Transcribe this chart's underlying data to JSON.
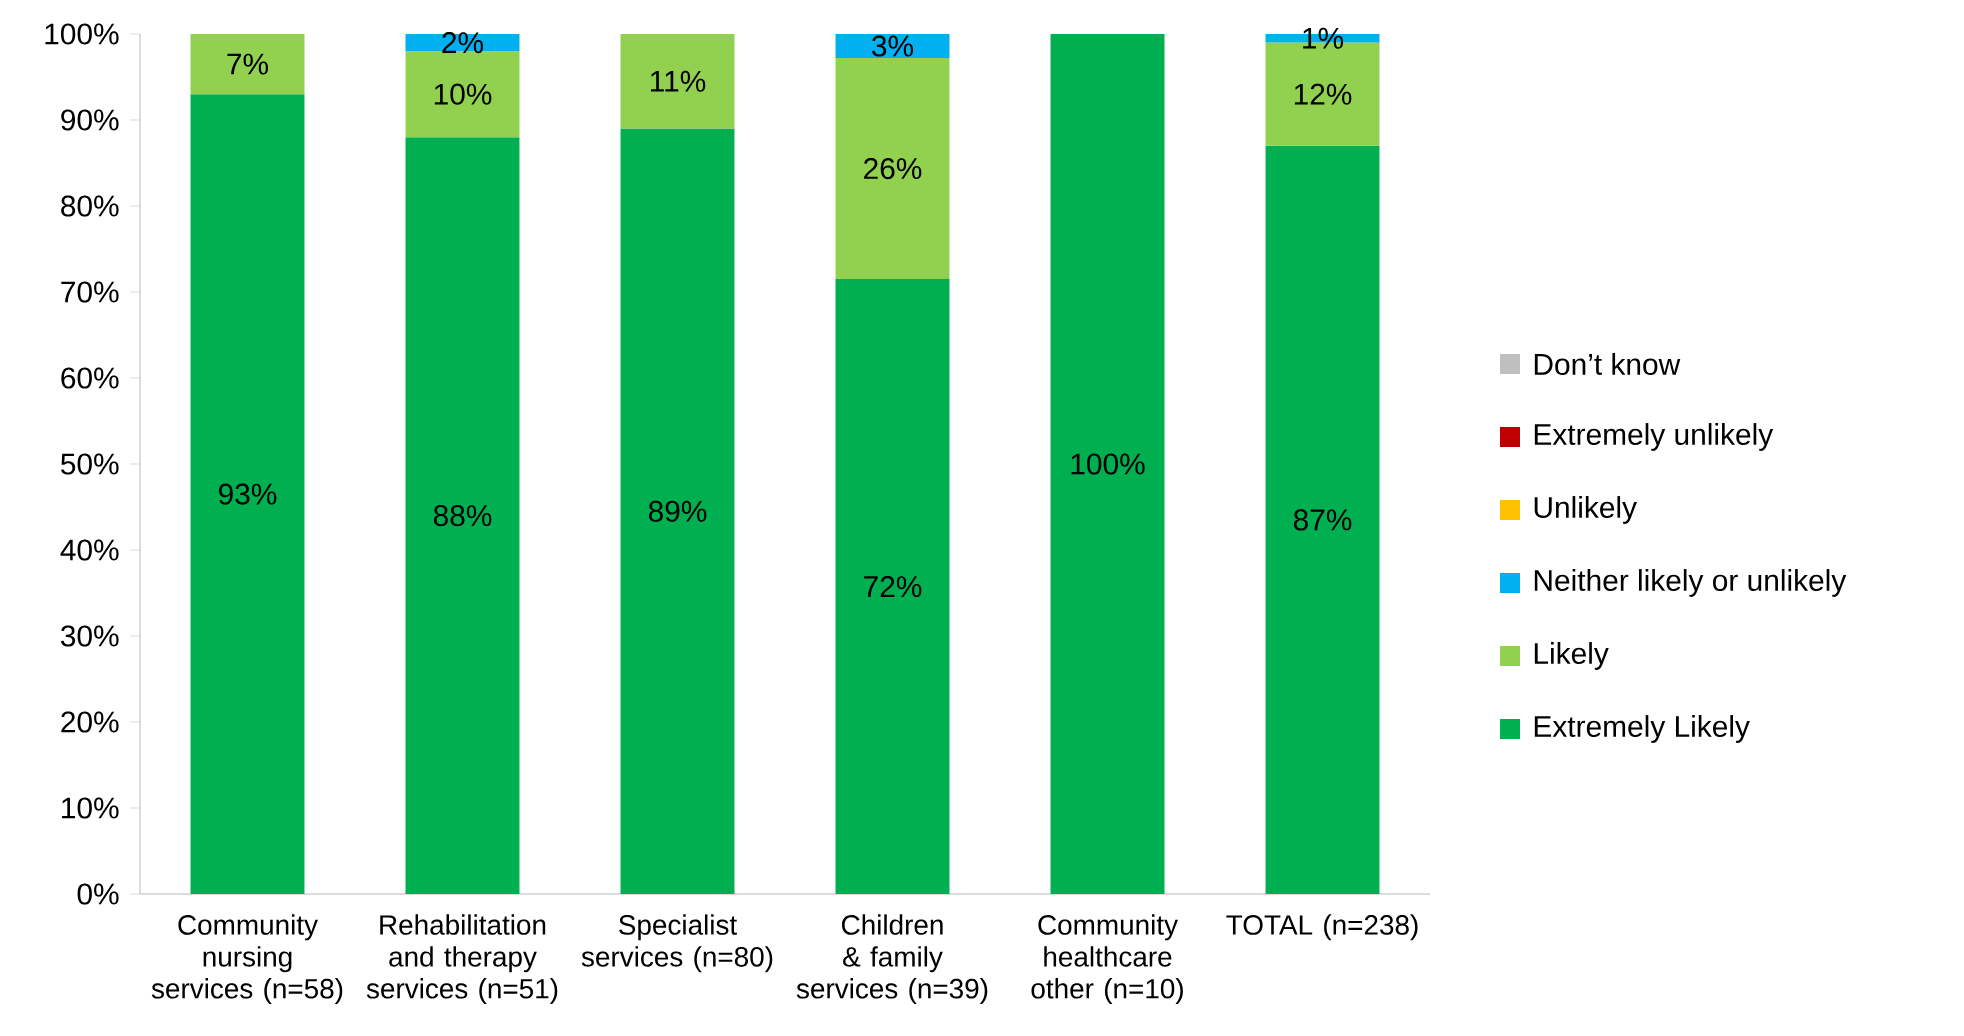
{
  "chart_data": {
    "type": "bar",
    "stacked": true,
    "legend": "right",
    "categories": [
      "Community nursing services (n=58)",
      "Rehabilitation and therapy services (n=51)",
      "Specialist services (n=80)",
      "Children & family services (n=39)",
      "Community healthcare other (n=10)",
      "TOTAL (n=238)"
    ],
    "ylim": [
      0,
      100
    ],
    "yticks": [
      {
        "value": 0,
        "label": "0%"
      },
      {
        "value": 10,
        "label": "10%"
      },
      {
        "value": 20,
        "label": "20%"
      },
      {
        "value": 30,
        "label": "30%"
      },
      {
        "value": 40,
        "label": "40%"
      },
      {
        "value": 50,
        "label": "50%"
      },
      {
        "value": 60,
        "label": "60%"
      },
      {
        "value": 70,
        "label": "70%"
      },
      {
        "value": 80,
        "label": "80%"
      },
      {
        "value": 90,
        "label": "90%"
      },
      {
        "value": 100,
        "label": "100%"
      }
    ],
    "series": [
      {
        "name": "Extremely Likely",
        "color": "#00b050",
        "values": [
          93,
          88,
          89,
          71.5,
          100,
          87
        ],
        "value_labels": [
          "93%",
          "88%",
          "89%",
          "72%",
          "100%",
          "87%"
        ]
      },
      {
        "name": "Likely",
        "color": "#92d050",
        "values": [
          7,
          10,
          11,
          25.7,
          null,
          12
        ],
        "value_labels": [
          "7%",
          "10%",
          "11%",
          "26%",
          null,
          "12%"
        ]
      },
      {
        "name": "Neither likely or unlikely",
        "color": "#00b0f0",
        "values": [
          null,
          2,
          null,
          2.8,
          null,
          1
        ],
        "value_labels": [
          null,
          "2%",
          null,
          "3%",
          null,
          "1%"
        ]
      },
      {
        "name": "Unlikely",
        "color": "#ffc000",
        "values": [
          null,
          null,
          null,
          null,
          null,
          null
        ]
      },
      {
        "name": "Extremely unlikely",
        "color": "#c00000",
        "values": [
          null,
          null,
          null,
          null,
          null,
          null
        ]
      },
      {
        "name": "Don’t know",
        "color": "#bfbfbf",
        "values": [
          null,
          null,
          null,
          null,
          null,
          null
        ]
      }
    ]
  }
}
